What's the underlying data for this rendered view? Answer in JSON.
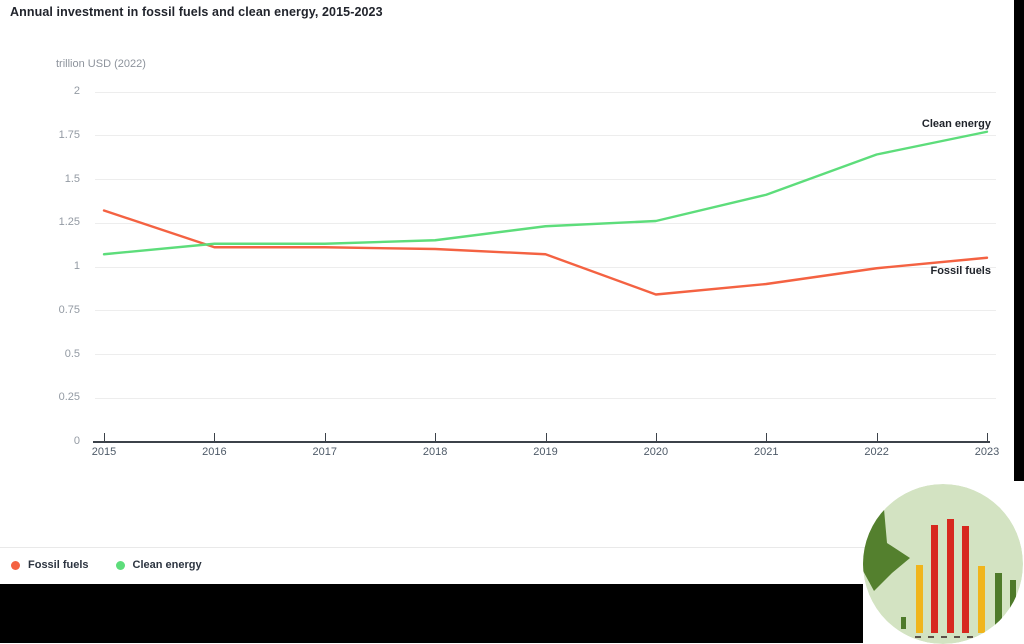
{
  "title": "Annual investment in fossil fuels and clean energy, 2015-2023",
  "y_unit_label": "trillion USD (2022)",
  "chart_data": {
    "type": "line",
    "title": "Annual investment in fossil fuels and clean energy, 2015-2023",
    "ylabel": "trillion USD (2022)",
    "xlabel": "",
    "x": [
      "2015",
      "2016",
      "2017",
      "2018",
      "2019",
      "2020",
      "2021",
      "2022",
      "2023"
    ],
    "series": [
      {
        "name": "Fossil fuels",
        "color": "#f46242",
        "values": [
          1.32,
          1.11,
          1.11,
          1.1,
          1.07,
          0.84,
          0.9,
          0.99,
          1.05
        ]
      },
      {
        "name": "Clean energy",
        "color": "#5ddd7b",
        "values": [
          1.07,
          1.13,
          1.13,
          1.15,
          1.23,
          1.26,
          1.41,
          1.64,
          1.77
        ]
      }
    ],
    "ylim": [
      0,
      2
    ],
    "yticks": [
      0,
      0.25,
      0.5,
      0.75,
      1,
      1.25,
      1.5,
      1.75,
      2
    ],
    "grid": true,
    "line_end_labels": true,
    "legend_position": "bottom-left"
  },
  "legend": {
    "items": [
      {
        "label": "Fossil fuels",
        "color": "#f46242"
      },
      {
        "label": "Clean energy",
        "color": "#5ddd7b"
      }
    ]
  },
  "logo": {
    "icon": "bar-chart-with-down-arrow-logo",
    "background_color": "#d3e3c2",
    "arrow_color": "#54802e",
    "bar_colors": {
      "red": "#d7281e",
      "yellow": "#f0b51c",
      "green": "#4e7a2a"
    }
  }
}
